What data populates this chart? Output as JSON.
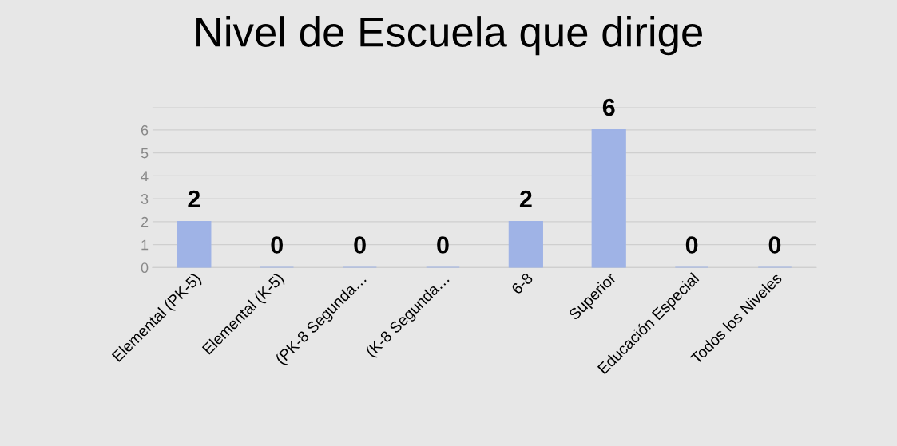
{
  "chart_data": {
    "type": "bar",
    "title": "Nivel de Escuela que dirige",
    "categories": [
      "Elemental (PK-5)",
      "Elemental (K-5)",
      "(PK-8 Segunda…",
      "(K-8 Segunda…",
      "6-8",
      "Superior",
      "Educación Especial",
      "Todos los Niveles"
    ],
    "values": [
      2,
      0,
      0,
      0,
      2,
      6,
      0,
      0
    ],
    "color": "#9fb3e6",
    "ylim": [
      0,
      7
    ],
    "yticks": [
      0,
      1,
      2,
      3,
      4,
      5,
      6,
      {
        "value": 7,
        "label": null
      }
    ],
    "grid": "y",
    "data_labels": true,
    "legend": false
  }
}
